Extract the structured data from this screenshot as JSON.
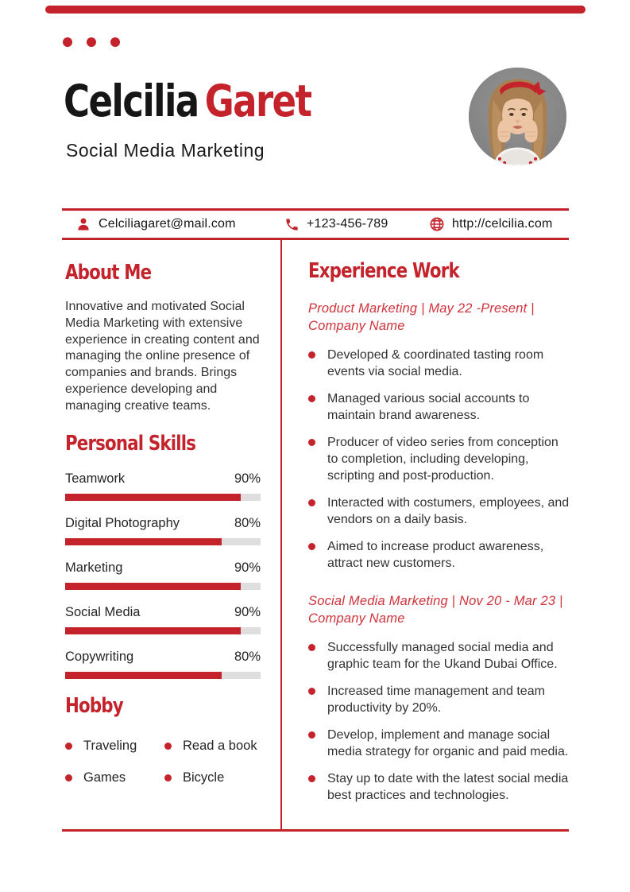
{
  "header": {
    "first_name": "Celcilia",
    "last_name": "Garet",
    "subtitle": "Social Media Marketing",
    "photo": "woman-portrait-red-headband"
  },
  "contact": {
    "email": "Celciliagaret@mail.com",
    "phone": "+123-456-789",
    "website": "http://celcilia.com",
    "icons": {
      "email": "person-icon",
      "phone": "phone-icon",
      "website": "globe-icon"
    }
  },
  "about": {
    "heading": "About Me",
    "text": "Innovative and motivated Social Media Marketing with extensive experience in creating content and managing the online presence of companies and brands. Brings experience developing and managing creative teams."
  },
  "skills": {
    "heading": "Personal Skills",
    "items": [
      {
        "label": "Teamwork",
        "percent": 90,
        "percent_label": "90%"
      },
      {
        "label": "Digital Photography",
        "percent": 80,
        "percent_label": "80%"
      },
      {
        "label": "Marketing",
        "percent": 90,
        "percent_label": "90%"
      },
      {
        "label": "Social Media",
        "percent": 90,
        "percent_label": "90%"
      },
      {
        "label": "Copywriting",
        "percent": 80,
        "percent_label": "80%"
      }
    ]
  },
  "hobby": {
    "heading": "Hobby",
    "items": [
      "Traveling",
      "Read a book",
      "Games",
      "Bicycle"
    ]
  },
  "experience": {
    "heading": "Experience Work",
    "jobs": [
      {
        "title": "Product Marketing | May 22 -Present | Company Name",
        "bullets": [
          "Developed & coordinated tasting room events via social media.",
          "Managed various social accounts to maintain brand awareness.",
          "Producer of video series from conception to completion, including developing, scripting and post-production.",
          "Interacted with costumers, employees, and vendors on a daily basis.",
          "Aimed to increase product awareness, attract new customers."
        ]
      },
      {
        "title": "Social Media Marketing | Nov 20 - Mar 23 | Company Name",
        "bullets": [
          "Successfully managed social media and graphic team for the Ukand Dubai Office.",
          "Increased time management and team productivity by 20%.",
          "Develop, implement and manage social media strategy for organic and paid media.",
          "Stay up to date with the latest social media best practices and technologies."
        ]
      }
    ]
  },
  "colors": {
    "accent": "#c4232c",
    "text": "#2e2e2e",
    "bar_track": "#dedede"
  }
}
